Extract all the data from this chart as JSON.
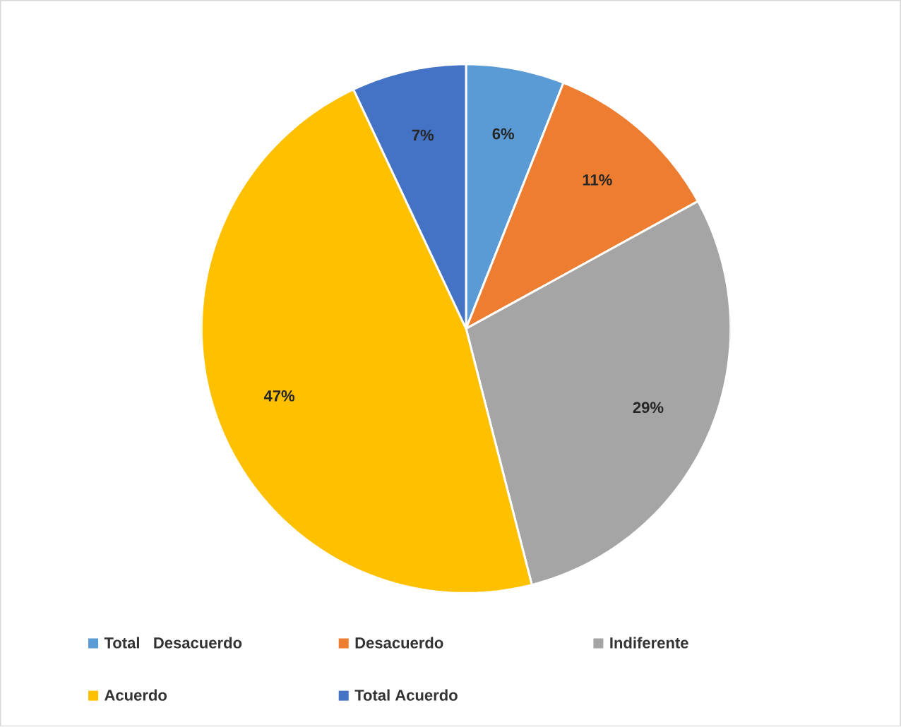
{
  "chart_data": {
    "type": "pie",
    "categories": [
      "Total   Desacuerdo",
      "Desacuerdo",
      "Indiferente",
      "Acuerdo",
      "Total Acuerdo"
    ],
    "values": [
      6,
      11,
      29,
      47,
      7
    ],
    "colors": [
      "#5b9bd5",
      "#ed7d31",
      "#a5a5a5",
      "#ffc000",
      "#4472c4"
    ],
    "value_labels": [
      "6%",
      "11%",
      "29%",
      "47%",
      "7%"
    ],
    "legend": "bottom"
  }
}
